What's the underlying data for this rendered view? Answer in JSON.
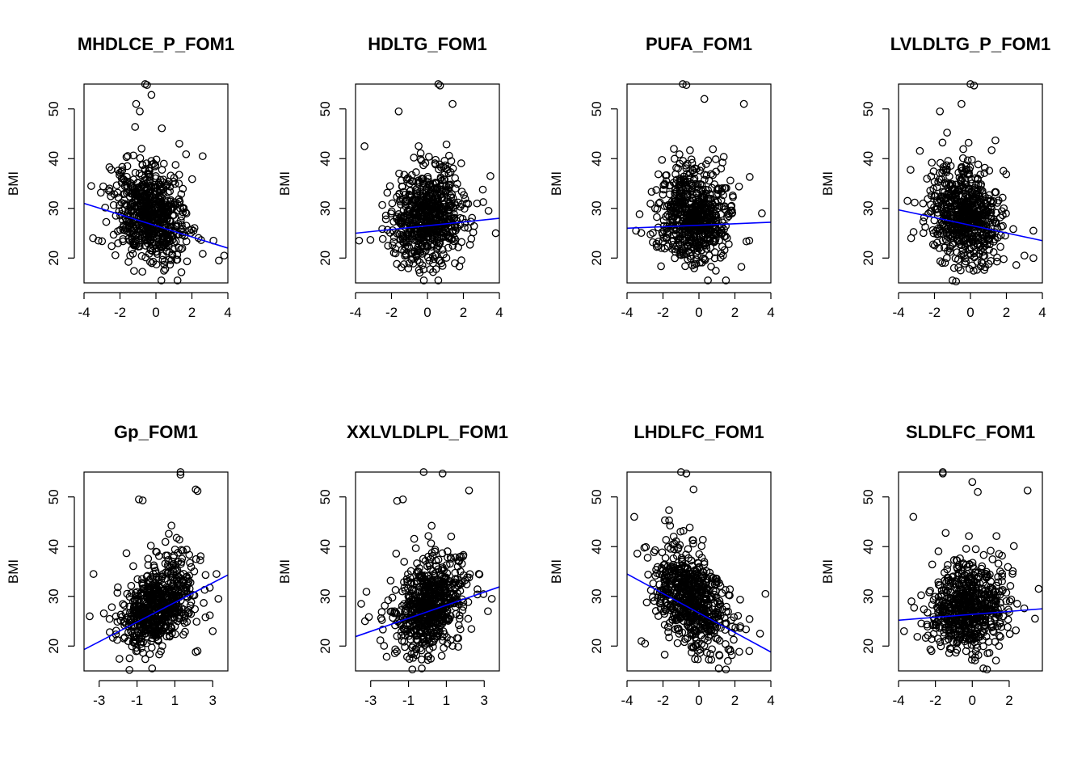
{
  "figure": {
    "panel_rows": 2,
    "panel_cols": 4,
    "point_color": "#000000",
    "fit_line_color": "#0000ff",
    "point_shape": "open-circle"
  },
  "chart_data": [
    {
      "type": "scatter",
      "title": "MHDLCE_P_FOM1",
      "xlabel": "",
      "ylabel": "BMI",
      "xlim": [
        -4,
        4
      ],
      "ylim": [
        15,
        55
      ],
      "xticks": [
        "-4",
        "-2",
        "0",
        "2",
        "4"
      ],
      "yticks": [
        "20",
        "30",
        "40",
        "50"
      ],
      "fit_line": {
        "x": [
          -4,
          4
        ],
        "y": [
          31,
          22
        ]
      },
      "cloud": {
        "n": 650,
        "seed": 11,
        "x_center": -0.3,
        "x_sd": 1.0,
        "y_center": 27.5,
        "y_sd": 5.5,
        "slope": -1.1,
        "y_min": 17,
        "y_max": 55
      },
      "outliers": [
        [
          -0.6,
          55
        ],
        [
          -0.5,
          54.8
        ],
        [
          -1.1,
          51
        ],
        [
          -0.9,
          49.5
        ],
        [
          1.3,
          43
        ],
        [
          2.6,
          40.5
        ],
        [
          -3.5,
          24
        ],
        [
          -3.2,
          23.5
        ],
        [
          3.5,
          19.5
        ],
        [
          3.8,
          20.5
        ],
        [
          0.3,
          15.5
        ],
        [
          1.2,
          15.5
        ],
        [
          3.2,
          23.5
        ],
        [
          -3.6,
          34.5
        ]
      ]
    },
    {
      "type": "scatter",
      "title": "HDLTG_FOM1",
      "xlabel": "",
      "ylabel": "BMI",
      "xlim": [
        -4,
        4
      ],
      "ylim": [
        15,
        55
      ],
      "xticks": [
        "-4",
        "-2",
        "0",
        "2",
        "4"
      ],
      "yticks": [
        "20",
        "30",
        "40",
        "50"
      ],
      "fit_line": {
        "x": [
          -4,
          4
        ],
        "y": [
          25,
          28
        ]
      },
      "cloud": {
        "n": 650,
        "seed": 23,
        "x_center": 0.0,
        "x_sd": 1.0,
        "y_center": 27,
        "y_sd": 5.3,
        "slope": 0.4,
        "y_min": 17,
        "y_max": 55
      },
      "outliers": [
        [
          0.6,
          55
        ],
        [
          0.7,
          54.7
        ],
        [
          1.4,
          51
        ],
        [
          -3.5,
          42.5
        ],
        [
          -3.8,
          23.5
        ],
        [
          3.8,
          25
        ],
        [
          3.5,
          36.5
        ],
        [
          3.4,
          29.5
        ],
        [
          0.6,
          15.5
        ],
        [
          -0.2,
          15.5
        ],
        [
          -1.6,
          49.5
        ]
      ]
    },
    {
      "type": "scatter",
      "title": "PUFA_FOM1",
      "xlabel": "",
      "ylabel": "BMI",
      "xlim": [
        -4,
        4
      ],
      "ylim": [
        15,
        55
      ],
      "xticks": [
        "-4",
        "-2",
        "0",
        "2",
        "4"
      ],
      "yticks": [
        "20",
        "30",
        "40",
        "50"
      ],
      "fit_line": {
        "x": [
          -4,
          4
        ],
        "y": [
          26,
          27.2
        ]
      },
      "cloud": {
        "n": 650,
        "seed": 37,
        "x_center": -0.2,
        "x_sd": 1.0,
        "y_center": 27,
        "y_sd": 5.3,
        "slope": 0.1,
        "y_min": 17,
        "y_max": 55
      },
      "outliers": [
        [
          -0.9,
          55
        ],
        [
          -0.7,
          54.8
        ],
        [
          0.3,
          52
        ],
        [
          2.5,
          51
        ],
        [
          3.5,
          29
        ],
        [
          -3.5,
          25.5
        ],
        [
          0.5,
          15.5
        ],
        [
          1.5,
          15.5
        ],
        [
          2.8,
          23.5
        ]
      ]
    },
    {
      "type": "scatter",
      "title": "LVLDLTG_P_FOM1",
      "xlabel": "",
      "ylabel": "BMI",
      "xlim": [
        -4,
        4
      ],
      "ylim": [
        15,
        55
      ],
      "xticks": [
        "-4",
        "-2",
        "0",
        "2",
        "4"
      ],
      "yticks": [
        "20",
        "30",
        "40",
        "50"
      ],
      "fit_line": {
        "x": [
          -4,
          4
        ],
        "y": [
          29.7,
          23.5
        ]
      },
      "cloud": {
        "n": 650,
        "seed": 41,
        "x_center": -0.3,
        "x_sd": 1.0,
        "y_center": 27.5,
        "y_sd": 5.5,
        "slope": -0.9,
        "y_min": 17,
        "y_max": 55
      },
      "outliers": [
        [
          0,
          55
        ],
        [
          0.2,
          54.7
        ],
        [
          -0.5,
          51
        ],
        [
          -1.7,
          49.5
        ],
        [
          -3.5,
          31.5
        ],
        [
          -3.3,
          24
        ],
        [
          3.5,
          25.5
        ],
        [
          3.5,
          20
        ],
        [
          -1,
          15.5
        ],
        [
          -0.8,
          15.3
        ],
        [
          3,
          20.5
        ]
      ]
    },
    {
      "type": "scatter",
      "title": "Gp_FOM1",
      "xlabel": "",
      "ylabel": "BMI",
      "xlim": [
        -3.8,
        3.8
      ],
      "ylim": [
        15,
        55
      ],
      "xticks": [
        "-3",
        "-1",
        "1",
        "3"
      ],
      "xtick_values": [
        -3,
        -1,
        1,
        3
      ],
      "yticks": [
        "20",
        "30",
        "40",
        "50"
      ],
      "fit_line": {
        "x": [
          -3.8,
          3.8
        ],
        "y": [
          19.3,
          34.3
        ]
      },
      "cloud": {
        "n": 650,
        "seed": 53,
        "x_center": 0.1,
        "x_sd": 1.0,
        "y_center": 27,
        "y_sd": 4.8,
        "slope": 2.0,
        "y_min": 17,
        "y_max": 55
      },
      "outliers": [
        [
          1.3,
          55
        ],
        [
          1.3,
          54.5
        ],
        [
          2.1,
          51.5
        ],
        [
          2.2,
          51.2
        ],
        [
          -0.9,
          49.5
        ],
        [
          -0.7,
          49.3
        ],
        [
          3.3,
          29.5
        ],
        [
          3.2,
          34.5
        ],
        [
          -3.5,
          26
        ],
        [
          -3.3,
          34.5
        ],
        [
          2.1,
          18.8
        ],
        [
          2.2,
          19
        ],
        [
          3,
          23
        ],
        [
          -0.2,
          15.5
        ],
        [
          -1.4,
          15.2
        ]
      ]
    },
    {
      "type": "scatter",
      "title": "XXLVLDLPL_FOM1",
      "xlabel": "",
      "ylabel": "BMI",
      "xlim": [
        -3.8,
        3.8
      ],
      "ylim": [
        15,
        55
      ],
      "xticks": [
        "-3",
        "-1",
        "1",
        "3"
      ],
      "xtick_values": [
        -3,
        -1,
        1,
        3
      ],
      "yticks": [
        "20",
        "30",
        "40",
        "50"
      ],
      "fit_line": {
        "x": [
          -3.8,
          3.8
        ],
        "y": [
          21.9,
          31.9
        ]
      },
      "cloud": {
        "n": 650,
        "seed": 67,
        "x_center": 0.1,
        "x_sd": 1.0,
        "y_center": 27,
        "y_sd": 5.0,
        "slope": 1.3,
        "y_min": 17,
        "y_max": 55
      },
      "outliers": [
        [
          -0.2,
          55
        ],
        [
          0.8,
          54.7
        ],
        [
          2.2,
          51.3
        ],
        [
          -1.3,
          49.5
        ],
        [
          -1.6,
          49.2
        ],
        [
          -3.5,
          28.5
        ],
        [
          -3.3,
          25
        ],
        [
          3.4,
          29.5
        ],
        [
          3.2,
          27
        ],
        [
          -0.3,
          15.5
        ],
        [
          -0.8,
          15.3
        ]
      ]
    },
    {
      "type": "scatter",
      "title": "LHDLFC_FOM1",
      "xlabel": "",
      "ylabel": "BMI",
      "xlim": [
        -4,
        4
      ],
      "ylim": [
        15,
        55
      ],
      "xticks": [
        "-4",
        "-2",
        "0",
        "2",
        "4"
      ],
      "yticks": [
        "20",
        "30",
        "40",
        "50"
      ],
      "fit_line": {
        "x": [
          -4,
          4
        ],
        "y": [
          34.5,
          18.8
        ]
      },
      "cloud": {
        "n": 650,
        "seed": 79,
        "x_center": -0.4,
        "x_sd": 1.0,
        "y_center": 28,
        "y_sd": 5.5,
        "slope": -2.2,
        "y_min": 17,
        "y_max": 55
      },
      "outliers": [
        [
          -1,
          55
        ],
        [
          -0.7,
          54.7
        ],
        [
          -0.3,
          51.5
        ],
        [
          -3.6,
          46
        ],
        [
          -3.2,
          21
        ],
        [
          -3,
          20.5
        ],
        [
          3.7,
          30.5
        ],
        [
          3.4,
          22.5
        ],
        [
          2.8,
          19
        ],
        [
          1.1,
          15.5
        ],
        [
          1.5,
          15.3
        ]
      ]
    },
    {
      "type": "scatter",
      "title": "SLDLFC_FOM1",
      "xlabel": "",
      "ylabel": "BMI",
      "xlim": [
        -4,
        3.8
      ],
      "ylim": [
        15,
        55
      ],
      "xticks": [
        "-4",
        "-2",
        "0",
        "2"
      ],
      "xtick_values": [
        -4,
        -2,
        0,
        2
      ],
      "yticks": [
        "20",
        "30",
        "40",
        "50"
      ],
      "fit_line": {
        "x": [
          -4,
          3.8
        ],
        "y": [
          25.2,
          27.5
        ]
      },
      "cloud": {
        "n": 650,
        "seed": 97,
        "x_center": -0.2,
        "x_sd": 1.0,
        "y_center": 27,
        "y_sd": 5.2,
        "slope": 0.3,
        "y_min": 17,
        "y_max": 55
      },
      "outliers": [
        [
          -1.6,
          55
        ],
        [
          -1.6,
          54.7
        ],
        [
          0,
          53
        ],
        [
          0.3,
          51
        ],
        [
          3,
          51.3
        ],
        [
          -3.2,
          46
        ],
        [
          -3.7,
          23
        ],
        [
          -3.3,
          29
        ],
        [
          3.6,
          31.5
        ],
        [
          3.4,
          25.5
        ],
        [
          0.6,
          15.5
        ],
        [
          0.8,
          15.3
        ]
      ]
    }
  ]
}
